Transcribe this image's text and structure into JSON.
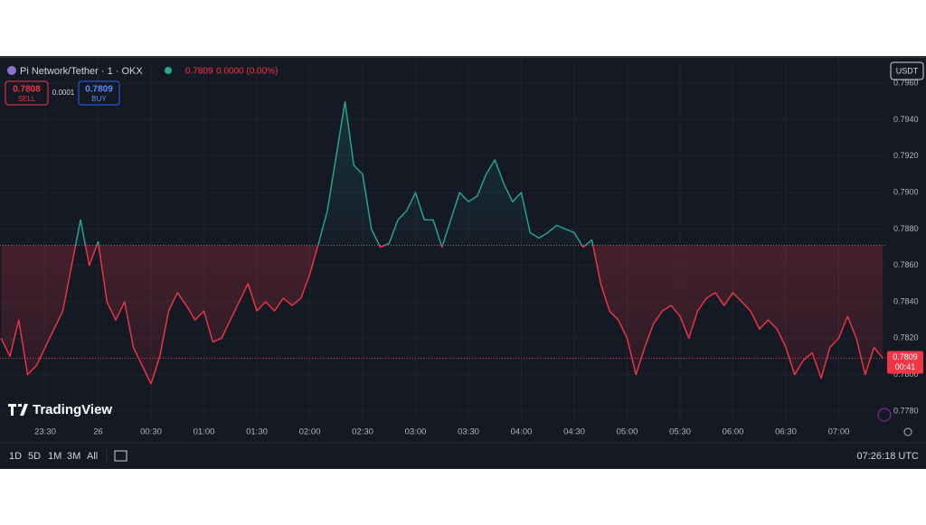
{
  "header": {
    "symbol": "Pi Network/Tether · 1 · OKX",
    "price": "0.7809",
    "change": "0.0000 (0.00%)"
  },
  "order": {
    "sell_price": "0.7808",
    "sell": "SELL",
    "spread": "0.0001",
    "buy_price": "0.7809",
    "buy": "BUY"
  },
  "currency": "USDT",
  "logo": "TradingView",
  "price_tag": {
    "price": "0.7809",
    "countdown": "00:41"
  },
  "timeframes": [
    "1D",
    "5D",
    "1M",
    "3M",
    "All"
  ],
  "clock": "07:26:18 UTC",
  "chart_data": {
    "type": "line",
    "categories": [
      null,
      null,
      null,
      null,
      null,
      "23:30",
      null,
      null,
      null,
      null,
      null,
      "26",
      null,
      null,
      null,
      null,
      null,
      "00:30",
      null,
      null,
      null,
      null,
      null,
      "01:00",
      null,
      null,
      null,
      null,
      null,
      "01:30",
      null,
      null,
      null,
      null,
      null,
      "02:00",
      null,
      null,
      null,
      null,
      null,
      "02:30",
      null,
      null,
      null,
      null,
      null,
      "03:00",
      null,
      null,
      null,
      null,
      null,
      "03:30",
      null,
      null,
      null,
      null,
      null,
      "04:00",
      null,
      null,
      null,
      null,
      null,
      "04:30",
      null,
      null,
      null,
      null,
      null,
      "05:00",
      null,
      null,
      null,
      null,
      null,
      "05:30",
      null,
      null,
      null,
      null,
      null,
      "06:00",
      null,
      null,
      null,
      null,
      null,
      "06:30",
      null,
      null,
      null,
      null,
      null,
      "07:00",
      null,
      null,
      null,
      null,
      null
    ],
    "values": [
      0.782,
      0.781,
      0.783,
      0.78,
      0.7805,
      0.7815,
      0.7825,
      0.7835,
      0.786,
      0.7885,
      0.786,
      0.7873,
      0.784,
      0.783,
      0.784,
      0.7815,
      0.7805,
      0.7795,
      0.781,
      0.7835,
      0.7845,
      0.7838,
      0.783,
      0.7835,
      0.7818,
      0.782,
      0.783,
      0.784,
      0.785,
      0.7835,
      0.784,
      0.7835,
      0.7842,
      0.7838,
      0.7842,
      0.7855,
      0.7872,
      0.789,
      0.792,
      0.795,
      0.7915,
      0.791,
      0.788,
      0.787,
      0.7872,
      0.7885,
      0.789,
      0.79,
      0.7885,
      0.7885,
      0.787,
      0.7885,
      0.79,
      0.7895,
      0.7898,
      0.791,
      0.7918,
      0.7905,
      0.7895,
      0.79,
      0.7878,
      0.7875,
      0.7878,
      0.7882,
      0.788,
      0.7878,
      0.787,
      0.7874,
      0.785,
      0.7835,
      0.783,
      0.782,
      0.78,
      0.7815,
      0.7828,
      0.7835,
      0.7838,
      0.7832,
      0.782,
      0.7835,
      0.7842,
      0.7845,
      0.7838,
      0.7845,
      0.784,
      0.7835,
      0.7825,
      0.783,
      0.7825,
      0.7815,
      0.78,
      0.7808,
      0.7812,
      0.7798,
      0.7815,
      0.782,
      0.7832,
      0.782,
      0.78,
      0.7815,
      0.7809
    ],
    "baseline": 0.7871,
    "last": 0.7809,
    "up_color": "#22ab94",
    "down_color": "#f23645",
    "ylim": [
      0.7775,
      0.7972
    ],
    "yticks": [
      {
        "value": 0.778,
        "label": "0.7780"
      },
      {
        "value": 0.78,
        "label": "0.7800"
      },
      {
        "value": 0.782,
        "label": "0.7820"
      },
      {
        "value": 0.784,
        "label": "0.7840"
      },
      {
        "value": 0.786,
        "label": "0.7860"
      },
      {
        "value": 0.788,
        "label": "0.7880"
      },
      {
        "value": 0.79,
        "label": "0.7900"
      },
      {
        "value": 0.792,
        "label": "0.7920"
      },
      {
        "value": 0.794,
        "label": "0.7940"
      },
      {
        "value": 0.796,
        "label": "0.7960"
      }
    ],
    "grid": true
  }
}
